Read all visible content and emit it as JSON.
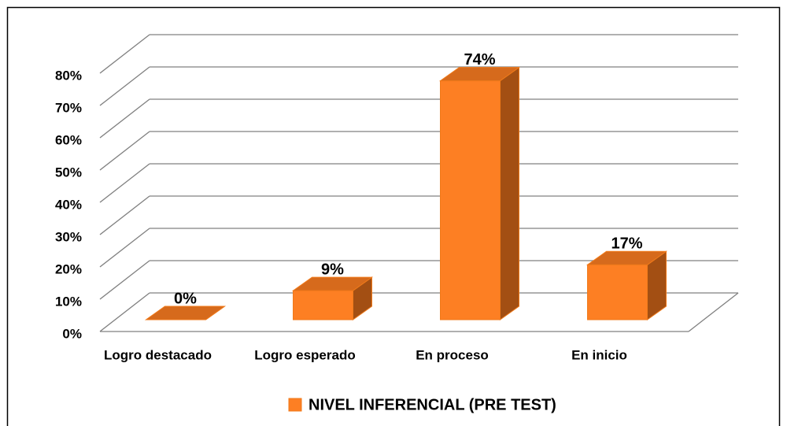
{
  "chart_data": {
    "type": "bar3d",
    "categories": [
      "Logro destacado",
      "Logro esperado",
      "En proceso",
      "En inicio"
    ],
    "series": [
      {
        "name": "NIVEL INFERENCIAL (PRE TEST)",
        "color": "#fd7f23",
        "values": [
          0,
          9,
          74,
          17
        ],
        "value_labels": [
          "0%",
          "9%",
          "74%",
          "17%"
        ]
      }
    ],
    "ylim": [
      0,
      80
    ],
    "yticks": [
      {
        "value": 0,
        "label": "0%"
      },
      {
        "value": 10,
        "label": "10%"
      },
      {
        "value": 20,
        "label": "20%"
      },
      {
        "value": 30,
        "label": "30%"
      },
      {
        "value": 40,
        "label": "40%"
      },
      {
        "value": 50,
        "label": "50%"
      },
      {
        "value": 60,
        "label": "60%"
      },
      {
        "value": 70,
        "label": "70%"
      },
      {
        "value": 80,
        "label": "80%"
      }
    ],
    "grid": true,
    "legend": "bottom"
  }
}
